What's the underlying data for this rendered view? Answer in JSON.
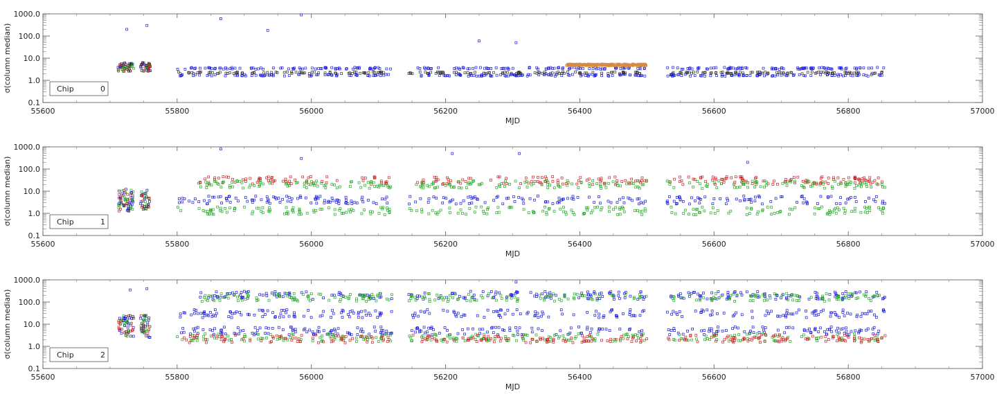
{
  "chart_data": [
    {
      "type": "scatter",
      "xlabel": "MJD",
      "ylabel": "σ(column median)",
      "xlim": [
        55600,
        57000
      ],
      "ylim": [
        0.1,
        1000
      ],
      "yscale": "log",
      "x_ticks": [
        "55600",
        "55800",
        "56000",
        "56200",
        "56400",
        "56600",
        "56800",
        "57000"
      ],
      "y_ticks": [
        "0.1",
        "1.0",
        "10.0",
        "100.0",
        "1000.0"
      ],
      "legend": {
        "label": "Chip",
        "value": "0",
        "placement": "bottom-left"
      },
      "data_gaps": [
        [
          55760,
          55800
        ],
        [
          56120,
          56145
        ],
        [
          56500,
          56530
        ]
      ],
      "series": [
        {
          "color": "#1a1adc",
          "bands": [
            {
              "level": 1.7,
              "x": [
                55800,
                56855
              ]
            },
            {
              "level": 3.5,
              "x": [
                55800,
                56855
              ]
            }
          ]
        },
        {
          "color": "#333333",
          "bands": [
            {
              "level": 2.2,
              "x": [
                55800,
                56855
              ]
            }
          ]
        },
        {
          "color": "#d88a40",
          "bands": [
            {
              "level": 5.0,
              "x": [
                56380,
                56500
              ]
            }
          ]
        }
      ],
      "outliers": [
        {
          "x": 55725,
          "y": 200
        },
        {
          "x": 55755,
          "y": 300
        },
        {
          "x": 55865,
          "y": 600
        },
        {
          "x": 55935,
          "y": 180
        },
        {
          "x": 55985,
          "y": 900
        },
        {
          "x": 56250,
          "y": 60
        },
        {
          "x": 56305,
          "y": 50
        }
      ]
    },
    {
      "type": "scatter",
      "xlabel": "MJD",
      "ylabel": "σ(column median)",
      "xlim": [
        55600,
        57000
      ],
      "ylim": [
        0.1,
        1000
      ],
      "yscale": "log",
      "x_ticks": [
        "55600",
        "55800",
        "56000",
        "56200",
        "56400",
        "56600",
        "56800",
        "57000"
      ],
      "y_ticks": [
        "0.1",
        "1.0",
        "10.0",
        "100.0",
        "1000.0"
      ],
      "legend": {
        "label": "Chip",
        "value": "1",
        "placement": "bottom-left"
      },
      "data_gaps": [
        [
          55760,
          55800
        ],
        [
          56120,
          56145
        ],
        [
          56500,
          56530
        ]
      ],
      "series": [
        {
          "color": "#cc2222",
          "bands": [
            {
              "level": 30,
              "x": [
                55830,
                56855
              ]
            }
          ]
        },
        {
          "color": "#22aa22",
          "bands": [
            {
              "level": 20,
              "x": [
                55830,
                56855
              ]
            },
            {
              "level": 1.3,
              "x": [
                55800,
                56855
              ]
            }
          ]
        },
        {
          "color": "#1a1adc",
          "bands": [
            {
              "level": 4.0,
              "x": [
                55800,
                56855
              ]
            }
          ]
        }
      ],
      "outliers": [
        {
          "x": 55865,
          "y": 800
        },
        {
          "x": 55985,
          "y": 300
        },
        {
          "x": 56210,
          "y": 500
        },
        {
          "x": 56310,
          "y": 500
        },
        {
          "x": 56650,
          "y": 200
        }
      ]
    },
    {
      "type": "scatter",
      "xlabel": "MJD",
      "ylabel": "σ(column median)",
      "xlim": [
        55600,
        57000
      ],
      "ylim": [
        0.1,
        1000
      ],
      "yscale": "log",
      "x_ticks": [
        "55600",
        "55800",
        "56000",
        "56200",
        "56400",
        "56600",
        "56800",
        "57000"
      ],
      "y_ticks": [
        "0.1",
        "1.0",
        "10.0",
        "100.0",
        "1000.0"
      ],
      "legend": {
        "label": "Chip",
        "value": "2",
        "placement": "bottom-left"
      },
      "data_gaps": [
        [
          55760,
          55800
        ],
        [
          56120,
          56145
        ],
        [
          56500,
          56530
        ]
      ],
      "series": [
        {
          "color": "#1a1adc",
          "bands": [
            {
              "level": 200,
              "x": [
                55830,
                56855
              ]
            },
            {
              "level": 30,
              "x": [
                55800,
                56855
              ]
            },
            {
              "level": 5.0,
              "x": [
                55800,
                56855
              ]
            }
          ]
        },
        {
          "color": "#22aa22",
          "bands": [
            {
              "level": 160,
              "x": [
                55830,
                56855
              ]
            },
            {
              "level": 2.5,
              "x": [
                55800,
                56855
              ]
            }
          ]
        },
        {
          "color": "#cc2222",
          "bands": [
            {
              "level": 2.2,
              "x": [
                55800,
                56855
              ]
            }
          ]
        }
      ],
      "outliers": [
        {
          "x": 55730,
          "y": 350
        },
        {
          "x": 55755,
          "y": 400
        },
        {
          "x": 56305,
          "y": 800
        }
      ]
    }
  ]
}
